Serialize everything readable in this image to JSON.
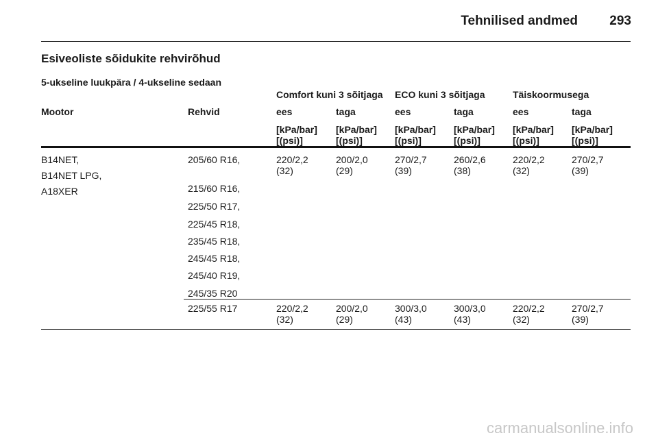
{
  "header": {
    "title": "Tehnilised andmed",
    "page_number": "293"
  },
  "section_title": "Esiveoliste sõidukite rehvirõhud",
  "subtitle": "5-ukseline luukpära / 4-ukseline sedaan",
  "table": {
    "groups": [
      "Comfort kuni 3 sõitjaga",
      "ECO kuni 3 sõitjaga",
      "Täiskoormusega"
    ],
    "col_engine": "Mootor",
    "col_tires": "Rehvid",
    "front": "ees",
    "rear": "taga",
    "unit_line1": "[kPa/bar]",
    "unit_line2": "[(psi)]",
    "engines": [
      "B14NET,",
      "B14NET LPG,",
      "A18XER"
    ],
    "row1": {
      "tires": [
        "205/60 R16,",
        "215/60 R16,",
        "225/50 R17,",
        "225/45 R18,",
        "235/45 R18,",
        "245/45 R18,",
        "245/40 R19,",
        "245/35 R20"
      ],
      "values": [
        {
          "bar": "220/2,2",
          "psi": "(32)"
        },
        {
          "bar": "200/2,0",
          "psi": "(29)"
        },
        {
          "bar": "270/2,7",
          "psi": "(39)"
        },
        {
          "bar": "260/2,6",
          "psi": "(38)"
        },
        {
          "bar": "220/2,2",
          "psi": "(32)"
        },
        {
          "bar": "270/2,7",
          "psi": "(39)"
        }
      ]
    },
    "row2": {
      "tire": "225/55 R17",
      "values": [
        {
          "bar": "220/2,2",
          "psi": "(32)"
        },
        {
          "bar": "200/2,0",
          "psi": "(29)"
        },
        {
          "bar": "300/3,0",
          "psi": "(43)"
        },
        {
          "bar": "300/3,0",
          "psi": "(43)"
        },
        {
          "bar": "220/2,2",
          "psi": "(32)"
        },
        {
          "bar": "270/2,7",
          "psi": "(39)"
        }
      ]
    }
  },
  "watermark": "carmanualsonline.info"
}
